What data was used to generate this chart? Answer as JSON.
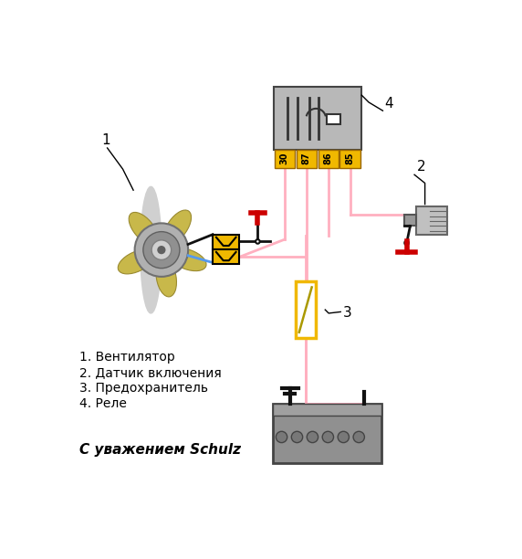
{
  "bg_color": "#ffffff",
  "wire_pink": "#ffb0c0",
  "wire_blue": "#5599ee",
  "wire_black": "#111111",
  "wire_red": "#cc0000",
  "relay_gray": "#b8b8b8",
  "relay_yellow": "#f0b800",
  "fuse_yellow": "#f0b800",
  "fan_blade_color": "#c8b84a",
  "fan_motor_outer": "#b0b0b0",
  "fan_motor_inner": "#909090",
  "fan_motor_center": "#606060",
  "connector_yellow": "#f0b800",
  "battery_body": "#909090",
  "battery_top": "#a0a0a0",
  "sensor_body": "#c0c0c0",
  "sensor_thread": "#999999",
  "label_1": "1. Вентилятор",
  "label_2": "2. Датчик включения",
  "label_3": "3. Предохранитель",
  "label_4": "4. Реле",
  "footer": "С уважением Schulz",
  "relay_pins": [
    "30",
    "87",
    "86",
    "85"
  ],
  "num_1": "1",
  "num_2": "2",
  "num_3": "3",
  "num_4": "4",
  "fig_w": 5.72,
  "fig_h": 6.12,
  "dpi": 100
}
